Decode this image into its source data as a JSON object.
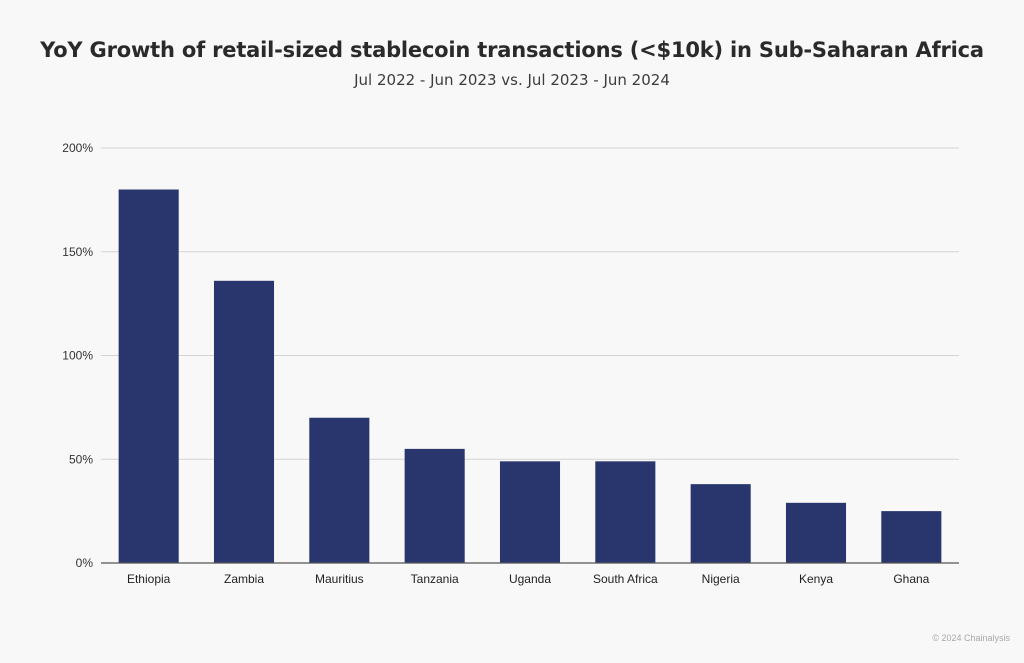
{
  "chart_data": {
    "type": "bar",
    "title": "YoY Growth of retail-sized stablecoin transactions (<$10k) in Sub-Saharan Africa",
    "subtitle": "Jul 2022 - Jun 2023 vs. Jul 2023 - Jun 2024",
    "categories": [
      "Ethiopia",
      "Zambia",
      "Mauritius",
      "Tanzania",
      "Uganda",
      "South Africa",
      "Nigeria",
      "Kenya",
      "Ghana"
    ],
    "values": [
      180,
      136,
      70,
      55,
      49,
      49,
      38,
      29,
      25
    ],
    "unit": "%",
    "ylim": [
      0,
      200
    ],
    "yticks": [
      0,
      50,
      100,
      150,
      200
    ],
    "ytick_labels": [
      "0%",
      "50%",
      "100%",
      "150%",
      "200%"
    ],
    "xlabel": "",
    "ylabel": "",
    "grid": true,
    "legend": "none",
    "bar_color": "#28366d",
    "grid_color": "#d4d4d4"
  },
  "footer": {
    "copyright": "© 2024 Chainalysis"
  }
}
